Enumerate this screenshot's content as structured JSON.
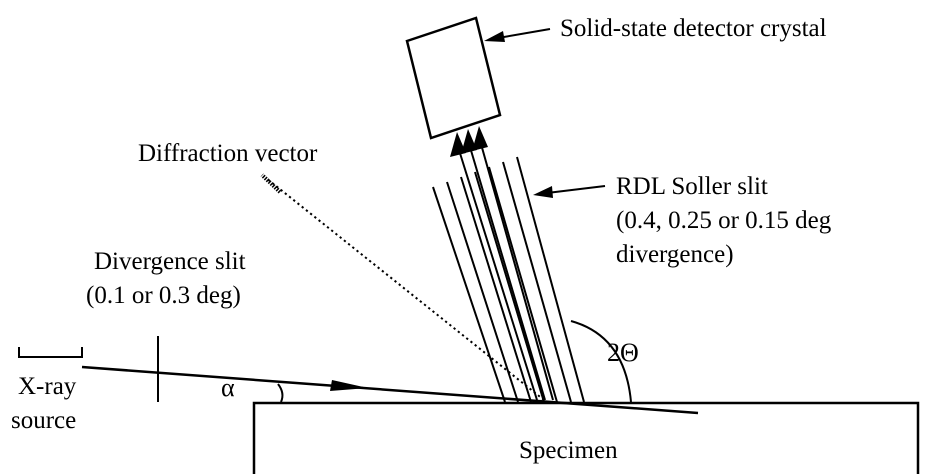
{
  "labels": {
    "detector": "Solid-state detector crystal",
    "diffraction_vector": "Diffraction vector",
    "soller_line1": "RDL Soller slit",
    "soller_line2": "(0.4, 0.25 or 0.15 deg",
    "soller_line3": "divergence)",
    "divergence_line1": "Divergence slit",
    "divergence_line2": "(0.1 or 0.3 deg)",
    "two_theta": "2Θ",
    "alpha": "α",
    "source_line1": "X-ray",
    "source_line2": "source",
    "specimen": "Specimen"
  }
}
